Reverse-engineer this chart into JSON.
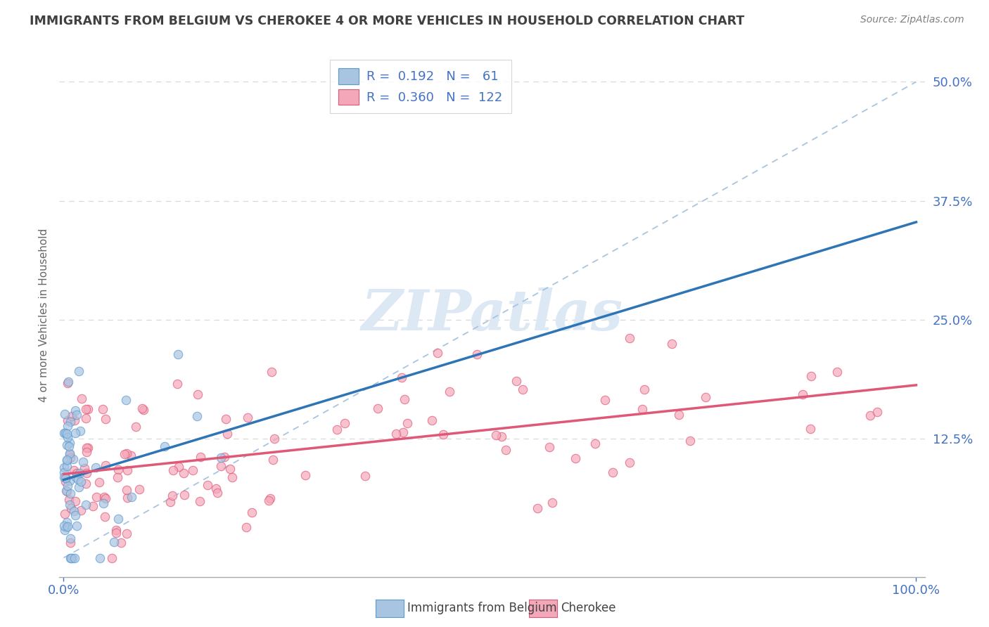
{
  "title": "IMMIGRANTS FROM BELGIUM VS CHEROKEE 4 OR MORE VEHICLES IN HOUSEHOLD CORRELATION CHART",
  "source": "Source: ZipAtlas.com",
  "ylabel": "4 or more Vehicles in Household",
  "yticks": [
    0,
    12.5,
    25.0,
    37.5,
    50.0
  ],
  "ytick_labels": [
    "",
    "12.5%",
    "25.0%",
    "37.5%",
    "50.0%"
  ],
  "xtick_labels": [
    "0.0%",
    "100.0%"
  ],
  "blue_scatter_color": "#a8c4e0",
  "blue_edge_color": "#5b9bd5",
  "pink_scatter_color": "#f4a7b9",
  "pink_edge_color": "#e05878",
  "blue_line_color": "#2e75b6",
  "pink_line_color": "#e05878",
  "ref_line_color": "#a8c4e0",
  "grid_color": "#d9d9d9",
  "title_color": "#404040",
  "source_color": "#808080",
  "axis_color": "#4472c4",
  "watermark_color": "#dce8f4",
  "background_color": "#ffffff",
  "legend_label1": "R =  0.192   N =   61",
  "legend_label2": "R =  0.360   N =  122",
  "legend_label_bottom1": "Immigrants from Belgium",
  "legend_label_bottom2": "Cherokee",
  "n_blue": 61,
  "n_pink": 122,
  "seed": 77
}
